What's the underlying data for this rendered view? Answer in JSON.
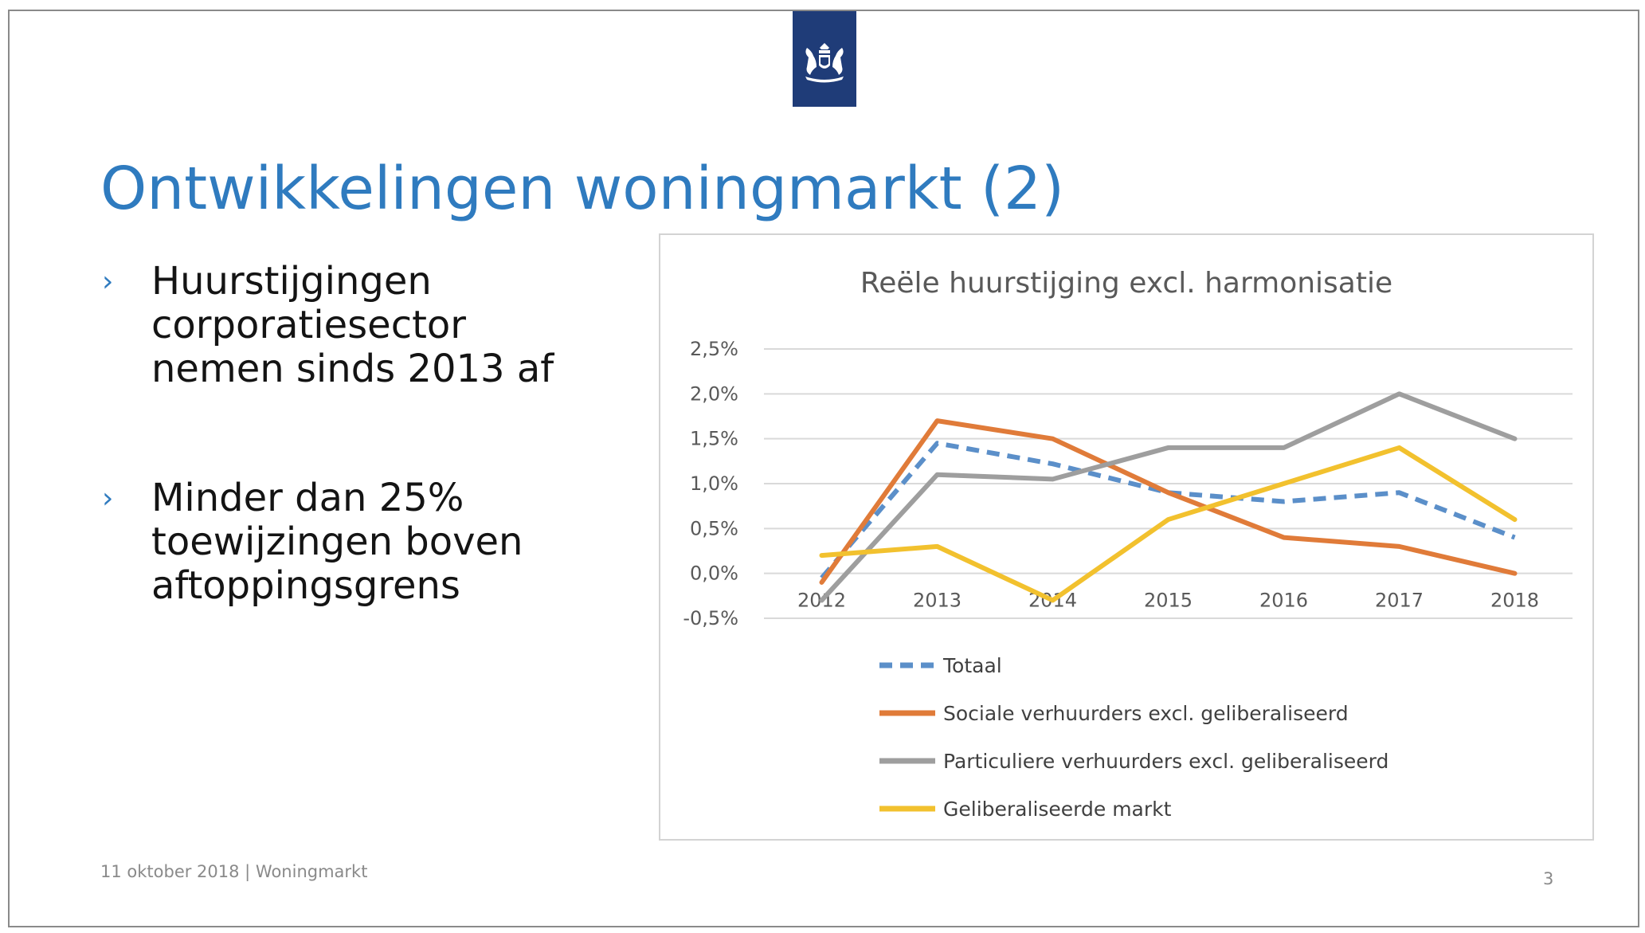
{
  "slide": {
    "title": "Ontwikkelingen woningmarkt (2)",
    "logo_icon": "royal-coat-of-arms-icon",
    "logo_color": "#1f3c78",
    "bullets": [
      {
        "marker": "›",
        "text": "Huurstijgingen corporatiesector nemen sinds 2013 af"
      },
      {
        "marker": "›",
        "text": "Minder dan 25% toewijzingen boven aftoppingsgrens"
      }
    ],
    "footer": "11 oktober 2018 | Woningmarkt",
    "page_number": "3",
    "accent_color": "#2f7bbf"
  },
  "chart_data": {
    "type": "line",
    "title": "Reële huurstijging excl. harmonisatie",
    "xlabel": "",
    "ylabel": "",
    "categories": [
      "2012",
      "2013",
      "2014",
      "2015",
      "2016",
      "2017",
      "2018"
    ],
    "ylim": [
      -0.5,
      2.5
    ],
    "yticks": [
      2.5,
      2.0,
      1.5,
      1.0,
      0.5,
      0.0,
      -0.5
    ],
    "ytick_labels": [
      "2,5%",
      "2,0%",
      "1,5%",
      "1,0%",
      "0,5%",
      "0,0%",
      "-0,5%"
    ],
    "grid": true,
    "legend_position": "bottom",
    "series": [
      {
        "name": "Totaal",
        "color": "#5b8fc9",
        "dashed": true,
        "values": [
          -0.05,
          1.45,
          1.22,
          0.9,
          0.8,
          0.9,
          0.4
        ]
      },
      {
        "name": "Sociale verhuurders excl. geliberaliseerd",
        "color": "#e07b39",
        "dashed": false,
        "values": [
          -0.1,
          1.7,
          1.5,
          0.9,
          0.4,
          0.3,
          0.0
        ]
      },
      {
        "name": "Particuliere verhuurders excl. geliberaliseerd",
        "color": "#9e9e9e",
        "dashed": false,
        "values": [
          -0.3,
          1.1,
          1.05,
          1.4,
          1.4,
          2.0,
          1.5
        ]
      },
      {
        "name": "Geliberaliseerde markt",
        "color": "#f2c12e",
        "dashed": false,
        "values": [
          0.2,
          0.3,
          -0.3,
          0.6,
          1.0,
          1.4,
          0.6
        ]
      }
    ]
  }
}
